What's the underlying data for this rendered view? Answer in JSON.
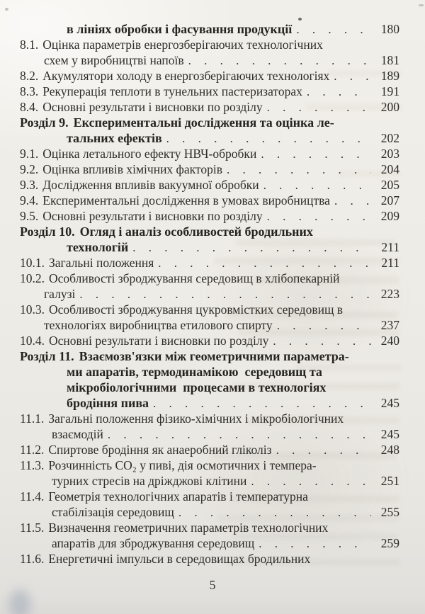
{
  "page": {
    "footer_page_number": "5",
    "paper_color": "#edebe5",
    "text_color": "#2f2d29"
  },
  "toc": {
    "dot_leader_char": ".",
    "rows": [
      {
        "type": "chapter-cont",
        "text": "в лініях обробки і фасування продукції",
        "page": "180"
      },
      {
        "type": "item",
        "num": "8.1.",
        "text": "Оцінка параметрів енергозберігаючих технологічних"
      },
      {
        "type": "item-cont",
        "text": "схем у виробництві напоїв",
        "page": "181"
      },
      {
        "type": "item",
        "num": "8.2.",
        "text": "Акумулятори холоду в енергозберігаючих технологіях",
        "page": "189"
      },
      {
        "type": "item",
        "num": "8.3.",
        "text": "Рекуперація теплоти в тунельних пастеризаторах",
        "page": "191"
      },
      {
        "type": "item",
        "num": "8.4.",
        "text": "Основні результати і висновки по розділу",
        "page": "200"
      },
      {
        "type": "chapter",
        "num": "Розділ 9.",
        "text": "Експериментальні дослідження та оцінка ле-"
      },
      {
        "type": "chapter-cont",
        "text": "тальних ефектів",
        "page": "202"
      },
      {
        "type": "item",
        "num": "9.1.",
        "text": "Оцінка летального ефекту НВЧ-обробки",
        "page": "203"
      },
      {
        "type": "item",
        "num": "9.2.",
        "text": "Оцінка впливів хімічних факторів",
        "page": "204"
      },
      {
        "type": "item",
        "num": "9.3.",
        "text": "Дослідження впливів вакуумної обробки",
        "page": "205"
      },
      {
        "type": "item",
        "num": "9.4.",
        "text": "Експериментальні дослідження в умовах виробництва",
        "page": "207"
      },
      {
        "type": "item",
        "num": "9.5.",
        "text": "Основні результати і висновки по розділу",
        "page": "209"
      },
      {
        "type": "chapter",
        "num": "Розділ 10.",
        "text": "Огляд і аналіз особливостей бродильних"
      },
      {
        "type": "chapter-cont",
        "text": "технологій",
        "page": "211"
      },
      {
        "type": "item",
        "num": "10.1.",
        "text": "Загальні положення",
        "page": "211"
      },
      {
        "type": "item",
        "num": "10.2.",
        "text": "Особливості зброджування середовищ в хлібопекарній"
      },
      {
        "type": "item-cont",
        "text": "галузі",
        "page": "223"
      },
      {
        "type": "item",
        "num": "10.3.",
        "text": "Особливості зброджування цукровмістких середовищ в"
      },
      {
        "type": "item-cont",
        "text": "технологіях виробництва етилового спирту",
        "page": "237"
      },
      {
        "type": "item",
        "num": "10.4.",
        "text": "Основні результати і висновки по розділу",
        "page": "240"
      },
      {
        "type": "chapter",
        "num": "Розділ 11.",
        "text": "Взаємозв'язки між геометричними параметра-"
      },
      {
        "type": "chapter-cont",
        "text": "ми апаратів, термодинамікою  середовищ та"
      },
      {
        "type": "chapter-cont",
        "text": "мікробіологічними  процесами в технологіях"
      },
      {
        "type": "chapter-cont",
        "text": "бродіння пива",
        "page": "245"
      },
      {
        "type": "item",
        "num": "11.1.",
        "text": "Загальні положення фізико-хімічних і мікробіологічних"
      },
      {
        "type": "item-cont-wide",
        "text": "взаємодій",
        "page": "245"
      },
      {
        "type": "item",
        "num": "11.2.",
        "text": "Спиртове бродіння як анаеробний гліколіз",
        "page": "248"
      },
      {
        "type": "item",
        "num": "11.3.",
        "text": "Розчинність CO₂ у пиві, дія осмотичних і темпера-"
      },
      {
        "type": "item-cont-wide",
        "text": "турних стресів на дріжджові клітини",
        "page": "251"
      },
      {
        "type": "item",
        "num": "11.4.",
        "text": "Геометрія технологічних апаратів і температурна"
      },
      {
        "type": "item-cont-wide",
        "text": "стабілізація середовищ",
        "page": "255"
      },
      {
        "type": "item",
        "num": "11.5.",
        "text": "Визначення геометричних параметрів технологічних"
      },
      {
        "type": "item-cont-wide",
        "text": "апаратів для зброджування середовищ",
        "page": "259"
      },
      {
        "type": "item",
        "num": "11.6.",
        "text": "Енергетичні імпульси в середовищах бродильних"
      }
    ]
  }
}
